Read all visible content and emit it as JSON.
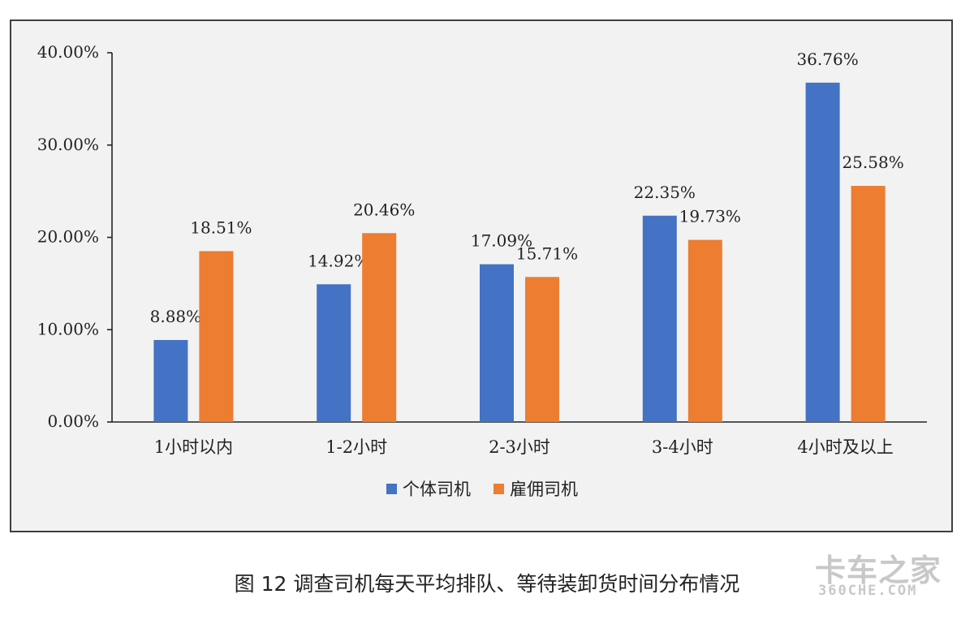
{
  "caption": "图 12  调查司机每天平均排队、等待装卸货时间分布情况",
  "watermark": {
    "line1": "卡车之家",
    "line2": "360CHE.COM"
  },
  "chart_data": {
    "type": "bar",
    "categories": [
      "1小时以内",
      "1-2小时",
      "2-3小时",
      "3-4小时",
      "4小时及以上"
    ],
    "series": [
      {
        "name": "个体司机",
        "values": [
          8.88,
          14.92,
          17.09,
          22.35,
          36.76
        ],
        "labels": [
          "8.88%",
          "14.92%",
          "17.09%",
          "22.35%",
          "36.76%"
        ],
        "color": "#4472c4"
      },
      {
        "name": "雇佣司机",
        "values": [
          18.51,
          20.46,
          15.71,
          19.73,
          25.58
        ],
        "labels": [
          "18.51%",
          "20.46%",
          "15.71%",
          "19.73%",
          "25.58%"
        ],
        "color": "#ed7d31"
      }
    ],
    "yticks": [
      "0.00%",
      "10.00%",
      "20.00%",
      "30.00%",
      "40.00%"
    ],
    "ylim": [
      0,
      40
    ],
    "legend_position": "bottom",
    "grid": false
  }
}
